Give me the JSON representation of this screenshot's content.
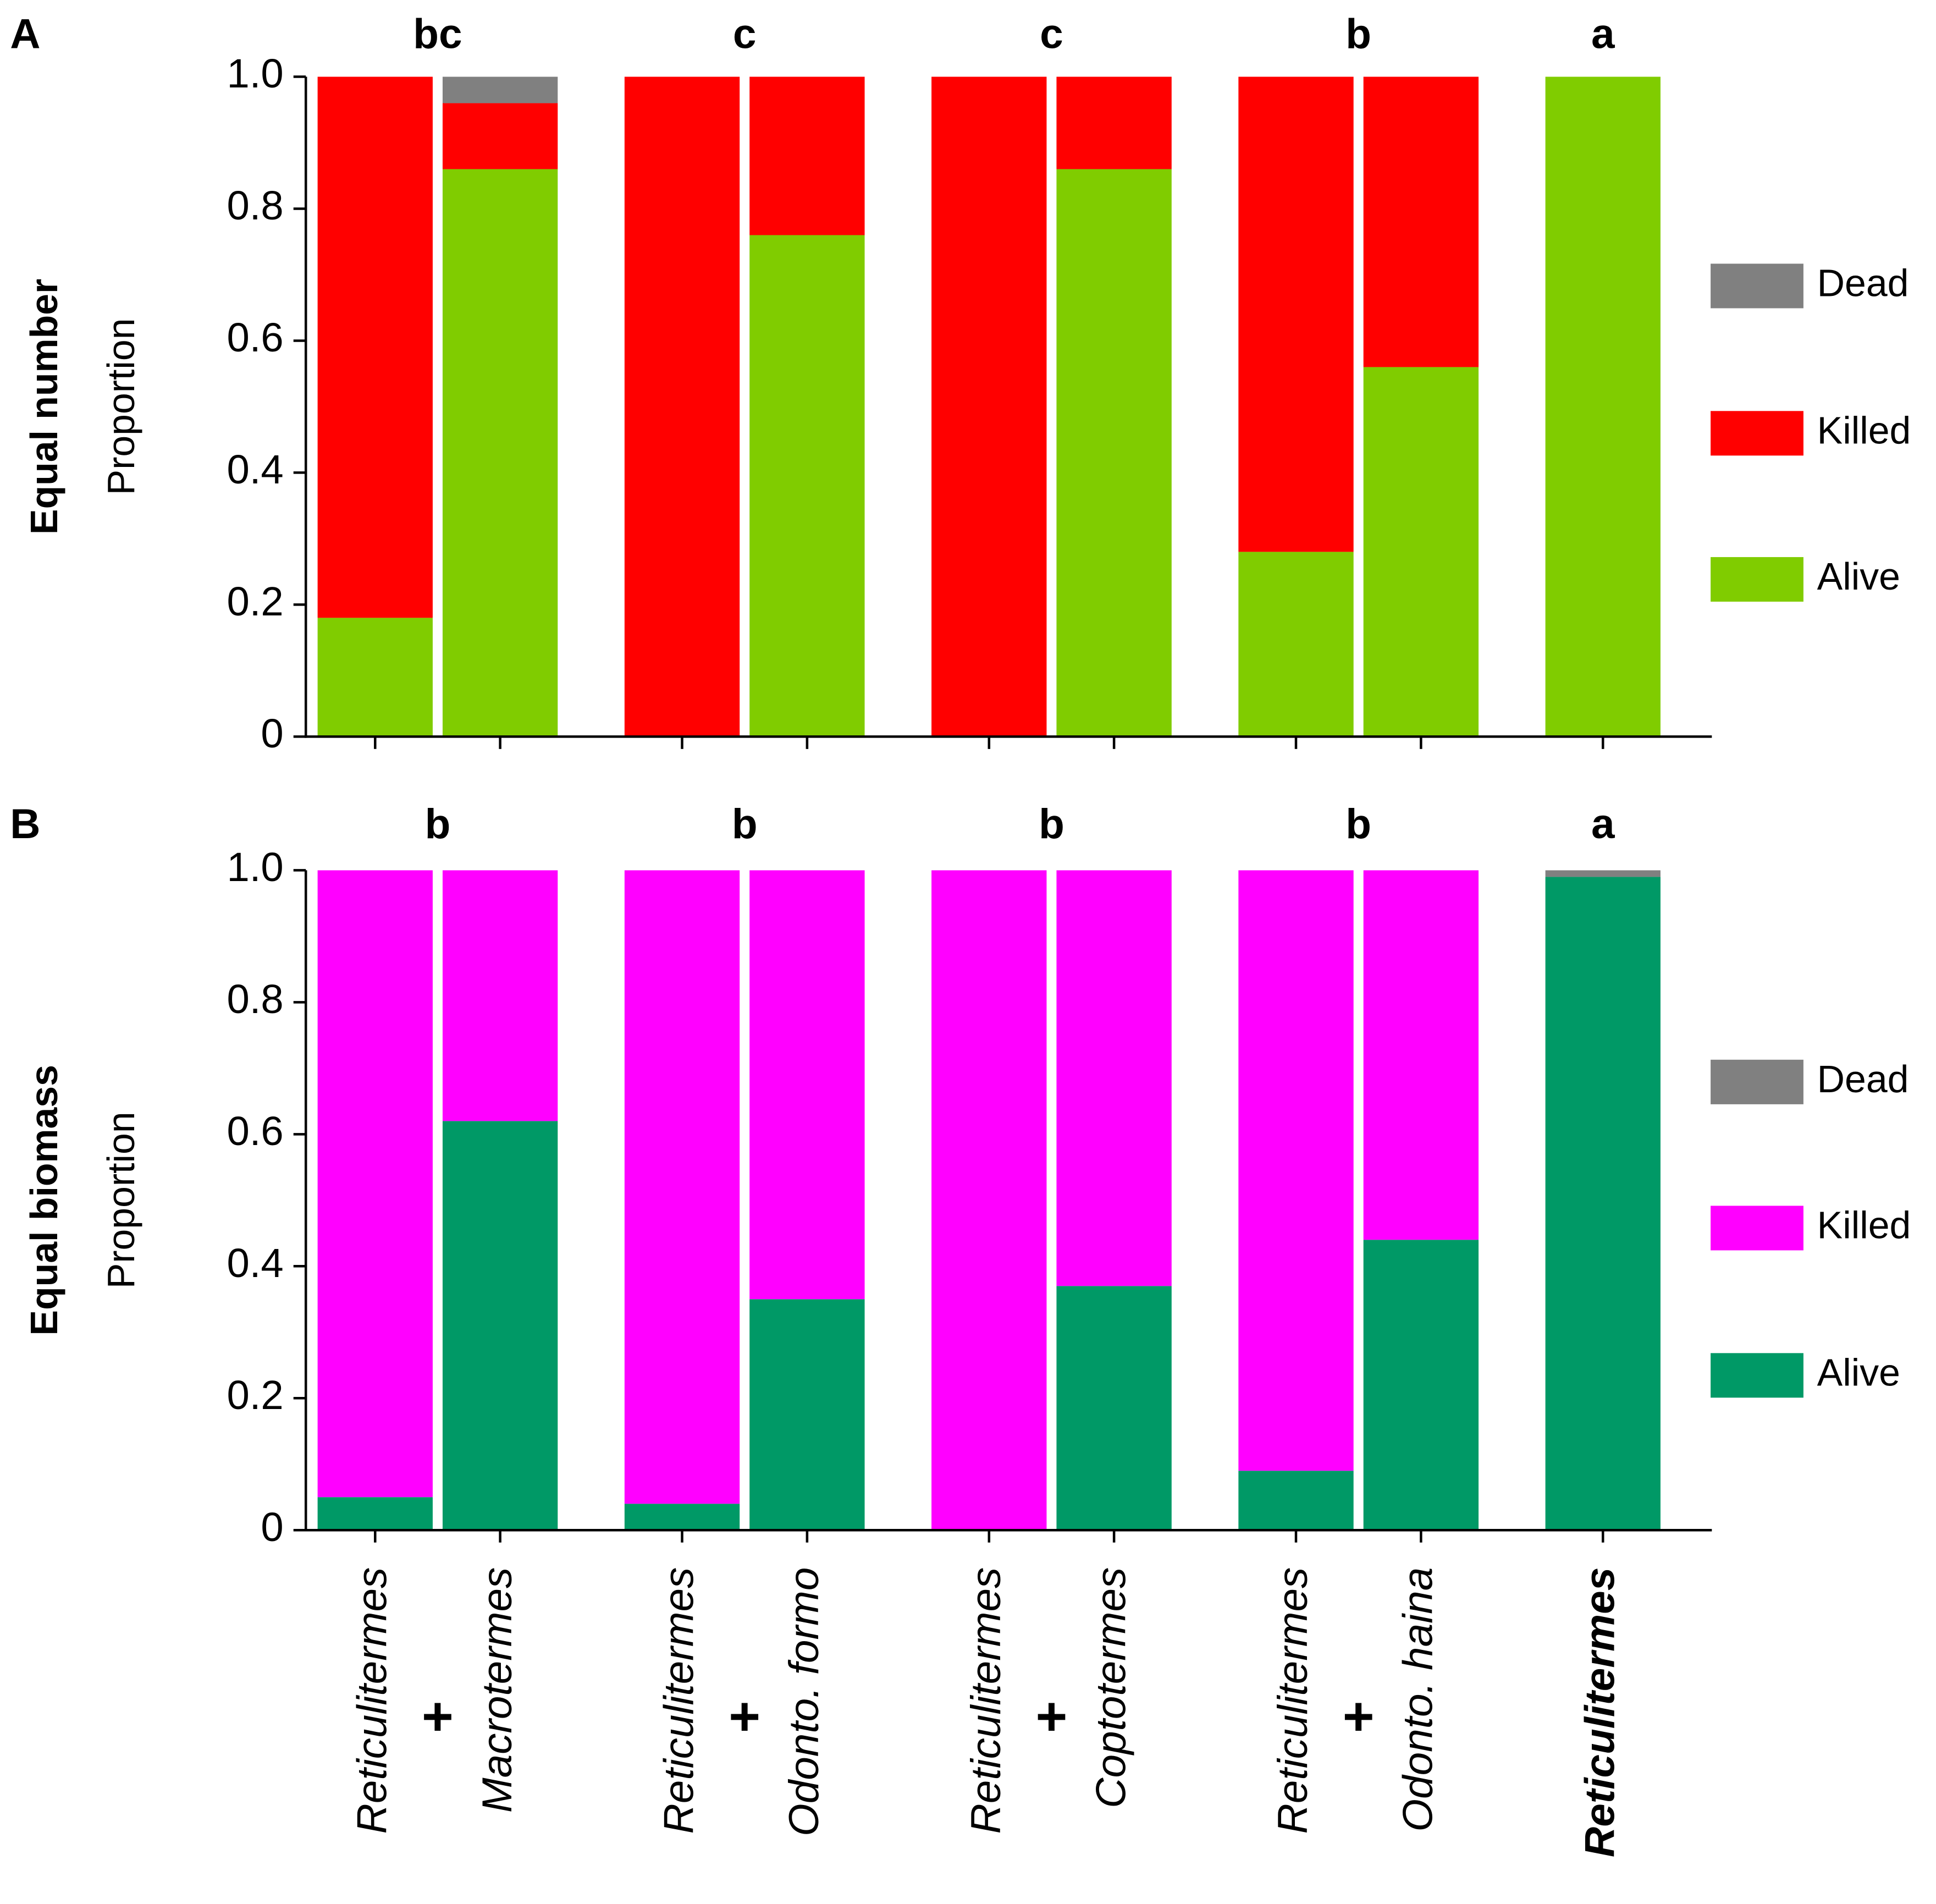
{
  "chart_data": [
    {
      "type": "stacked_bar",
      "panel": "A",
      "row_label": "Equal number",
      "ylabel": "Proportion",
      "group_letters": [
        "bc",
        "c",
        "c",
        "b",
        "a"
      ],
      "ylim": [
        0,
        1
      ],
      "yticks": [
        0,
        0.2,
        0.4,
        0.6,
        0.8,
        {
          "value": 1,
          "label": "1.0"
        }
      ],
      "legend": "right",
      "series": [
        {
          "name": "Dead",
          "color": "#808080",
          "text_color": "#a6a6a6",
          "values": [
            0,
            0.04,
            0,
            0,
            0,
            0,
            0,
            0,
            0
          ]
        },
        {
          "name": "Killed",
          "color": "#ff0000",
          "text_color": "#ff0000",
          "values": [
            0.82,
            0.1,
            1,
            0.24,
            1,
            0.14,
            0.72,
            0.44,
            0
          ]
        },
        {
          "name": "Alive",
          "color": "#80cc00",
          "text_color": "#66cc33",
          "values": [
            0.18,
            0.86,
            0,
            0.76,
            0,
            0.86,
            0.28,
            0.56,
            1
          ]
        }
      ]
    },
    {
      "type": "stacked_bar",
      "panel": "B",
      "row_label": "Equal biomass",
      "ylabel": "Proportion",
      "group_letters": [
        "b",
        "b",
        "b",
        "b",
        "a"
      ],
      "categories": [
        "Reticulitermes",
        "Macrotermes",
        "Reticulitermes",
        "Odonto. formo",
        "Reticulitermes",
        "Coptotermes",
        "Reticulitermes",
        "Odonto. haina",
        "Reticulitermes"
      ],
      "plus_signs": [
        "+",
        "+",
        "+",
        "+"
      ],
      "ylim": [
        0,
        1
      ],
      "yticks": [
        0,
        0.2,
        0.4,
        0.6,
        0.8,
        {
          "value": 1,
          "label": "1.0"
        }
      ],
      "legend": "right",
      "series": [
        {
          "name": "Dead",
          "color": "#808080",
          "text_color": "#a6a6a6",
          "values": [
            0,
            0,
            0,
            0,
            0,
            0,
            0,
            0,
            0.01
          ]
        },
        {
          "name": "Killed",
          "color": "#ff00ff",
          "text_color": "#ff00ff",
          "values": [
            0.95,
            0.38,
            0.96,
            0.65,
            1,
            0.63,
            0.91,
            0.56,
            0
          ]
        },
        {
          "name": "Alive",
          "color": "#009966",
          "text_color": "#009966",
          "values": [
            0.05,
            0.62,
            0.04,
            0.35,
            0,
            0.37,
            0.09,
            0.44,
            0.99
          ]
        }
      ]
    }
  ]
}
